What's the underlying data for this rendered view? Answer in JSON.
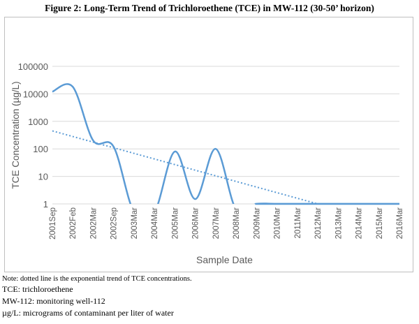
{
  "figure": {
    "title": "Figure 2: Long-Term Trend of Trichloroethene (TCE) in MW-112 (30-50’ horizon)"
  },
  "notes": {
    "line1": "Note: dotted line is the exponential trend of TCE concentrations.",
    "line2": "TCE: trichloroethene",
    "line3": "MW-112: monitoring well-112",
    "line4": "µg/L: micrograms of contaminant per liter of water"
  },
  "colors": {
    "series": "#5b9bd5",
    "grid": "#d9d9d9",
    "axis_text": "#595959"
  },
  "chart_data": {
    "type": "line",
    "title": "",
    "xlabel": "Sample Date",
    "ylabel": "TCE Concentration (µg/L)",
    "yscale": "log",
    "ylim": [
      1,
      100000
    ],
    "y_ticks": [
      1,
      10,
      100,
      1000,
      10000,
      100000
    ],
    "y_tick_labels": [
      "1",
      "10",
      "100",
      "1000",
      "10000",
      "100000"
    ],
    "grid": true,
    "legend": "none",
    "categories": [
      "2001Sep",
      "2002Feb",
      "2002Mar",
      "2002Sep",
      "2003Mar",
      "2004Mar",
      "2005Mar",
      "2006Mar",
      "2007Mar",
      "2008Mar",
      "2009Mar",
      "2010Mar",
      "2011Mar",
      "2012Mar",
      "2013Mar",
      "2014Mar",
      "2015Mar",
      "2016Mar"
    ],
    "series": [
      {
        "style": "solid smoothed",
        "values": [
          12000,
          18000,
          200,
          120,
          1,
          1,
          80,
          1.5,
          100,
          1,
          1,
          1,
          1,
          1,
          1,
          1,
          1,
          1
        ]
      },
      {
        "style": "dotted exponential trend",
        "start": 450,
        "end": 1,
        "reaches_floor_at": "2012Mar"
      }
    ]
  }
}
